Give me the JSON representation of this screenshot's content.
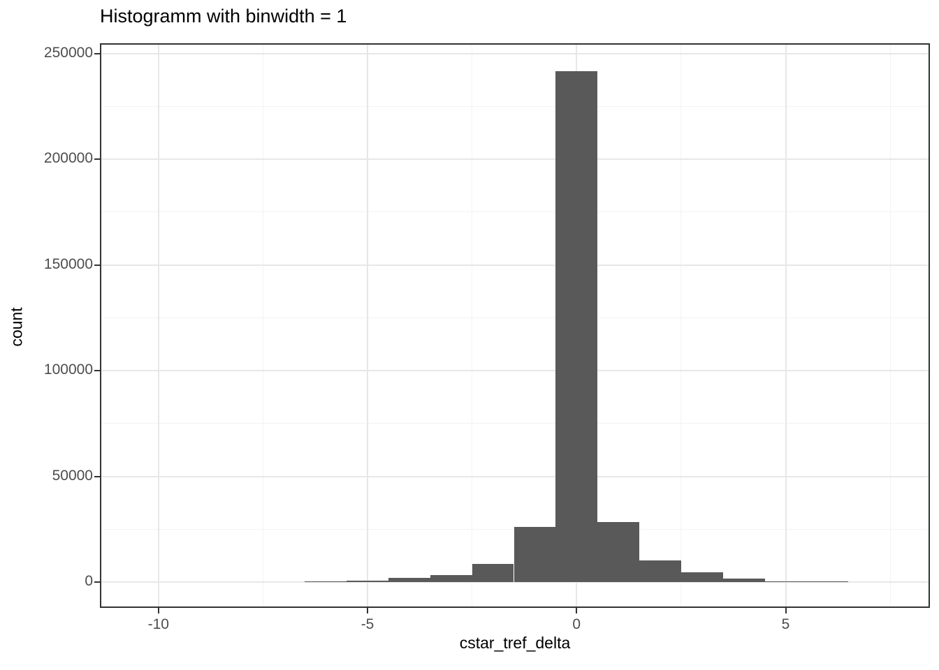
{
  "chart_data": {
    "type": "bar",
    "subtype": "histogram",
    "title": "Histogramm with binwidth = 1",
    "xlabel": "cstar_tref_delta",
    "ylabel": "count",
    "binwidth": 1,
    "bin_centers": [
      -6,
      -5,
      -4,
      -3,
      -2,
      -1,
      0,
      1,
      2,
      3,
      4,
      5,
      6
    ],
    "values": [
      300,
      700,
      1900,
      3300,
      8500,
      26000,
      241500,
      28500,
      10200,
      4600,
      1700,
      300,
      250
    ],
    "x_ticks": [
      -10,
      -5,
      0,
      5
    ],
    "x_minor_ticks": [
      -7.5,
      -2.5,
      2.5,
      7.5
    ],
    "y_ticks": [
      0,
      50000,
      100000,
      150000,
      200000,
      250000
    ],
    "y_minor_ticks": [
      25000,
      75000,
      125000,
      175000,
      225000
    ],
    "xlim": [
      -11.4,
      8.45
    ],
    "ylim": [
      -12200,
      254800
    ],
    "grid": "on",
    "legend": "none",
    "colors": {
      "bar_fill": "#595959",
      "panel_background": "#ffffff",
      "panel_border": "#333333",
      "grid_major": "#e7e7e7",
      "grid_minor": "#f3f3f3",
      "tick_mark": "#333333",
      "tick_label": "#4d4d4d",
      "title_text": "#000000"
    }
  }
}
